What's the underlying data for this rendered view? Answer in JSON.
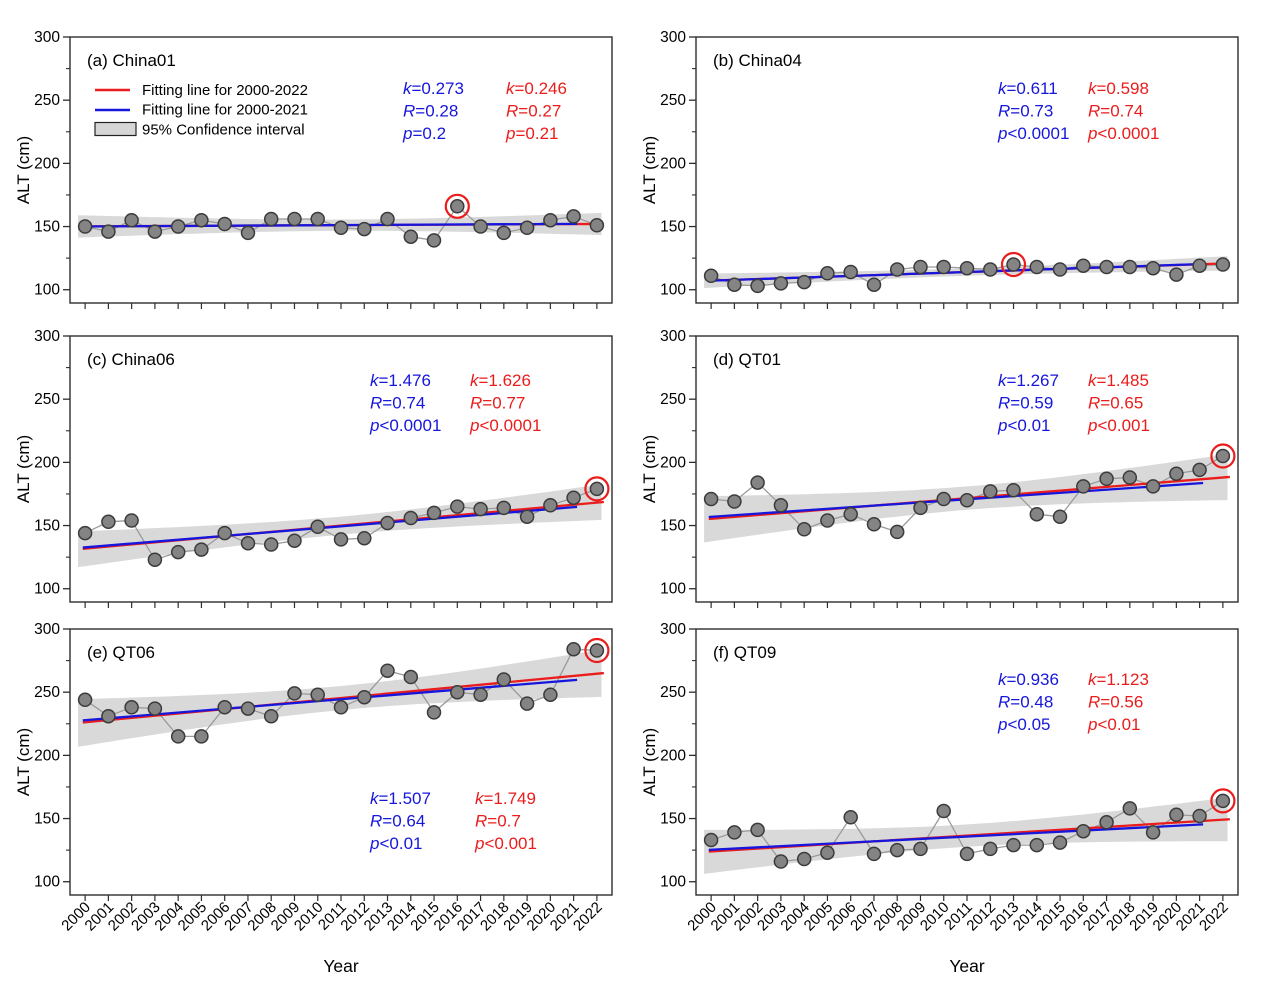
{
  "figure": {
    "description_label": "ALT time series with linear fits",
    "background": "#ffffff"
  },
  "colors": {
    "red_fit": "#ea1c1c",
    "blue_fit": "#1616dd",
    "band_gray": "#d6d6d6",
    "point_fill": "#848484",
    "point_stroke": "#3b3b3b",
    "connector_gray": "#9a9a9a",
    "axis": "#2d2d2d",
    "text": "#000000"
  },
  "legend": {
    "items": [
      {
        "label": "Fitting line for 2000-2022",
        "type": "line",
        "color": "#ea1c1c"
      },
      {
        "label": "Fitting line for 2000-2021",
        "type": "line",
        "color": "#1616dd"
      },
      {
        "label": "95% Confidence interval",
        "type": "box",
        "color": "#d6d6d6"
      }
    ]
  },
  "chart_data": {
    "type": "scatter",
    "xlabel": "Year",
    "ylabel": "ALT (cm)",
    "x": [
      2000,
      2001,
      2002,
      2003,
      2004,
      2005,
      2006,
      2007,
      2008,
      2009,
      2010,
      2011,
      2012,
      2013,
      2014,
      2015,
      2016,
      2017,
      2018,
      2019,
      2020,
      2021,
      2022
    ],
    "yticks": [
      300,
      250,
      200,
      150,
      100
    ],
    "ylim": [
      89.5,
      300
    ],
    "panels": [
      {
        "id": "a",
        "title": "(a) China01",
        "site": "China01",
        "show_legend": true,
        "y": [
          150,
          146,
          155,
          146,
          150,
          155,
          152,
          145,
          156,
          156,
          156,
          149,
          148,
          156,
          142,
          139,
          166,
          150,
          145,
          149,
          155,
          158,
          151
        ],
        "circled_year": 2016,
        "stats": {
          "blue": [
            "k=0.273",
            "R=0.28",
            "p=0.2"
          ],
          "red": [
            "k=0.246",
            "R=0.27",
            "p=0.21"
          ]
        }
      },
      {
        "id": "b",
        "title": "(b) China04",
        "site": "China04",
        "show_legend": false,
        "y": [
          111,
          104,
          103,
          105,
          106,
          113,
          114,
          104,
          116,
          118,
          118,
          117,
          116,
          120,
          118,
          116,
          119,
          118,
          118,
          117,
          112,
          119,
          120
        ],
        "circled_year": 2013,
        "stats": {
          "blue": [
            "k=0.611",
            "R=0.73",
            "p<0.0001"
          ],
          "red": [
            "k=0.598",
            "R=0.74",
            "p<0.0001"
          ]
        }
      },
      {
        "id": "c",
        "title": "(c) China06",
        "site": "China06",
        "show_legend": false,
        "y": [
          144,
          153,
          154,
          123,
          129,
          131,
          144,
          136,
          135,
          138,
          149,
          139,
          140,
          152,
          156,
          160,
          165,
          163,
          164,
          157,
          166,
          172,
          179
        ],
        "circled_year": 2022,
        "stats": {
          "blue": [
            "k=1.476",
            "R=0.74",
            "p<0.0001"
          ],
          "red": [
            "k=1.626",
            "R=0.77",
            "p<0.0001"
          ]
        }
      },
      {
        "id": "d",
        "title": "(d) QT01",
        "site": "QT01",
        "show_legend": false,
        "y": [
          171,
          169,
          184,
          166,
          147,
          154,
          159,
          151,
          145,
          164,
          171,
          170,
          177,
          178,
          159,
          157,
          181,
          187,
          188,
          181,
          191,
          194,
          205
        ],
        "circled_year": 2022,
        "stats": {
          "blue": [
            "k=1.267",
            "R=0.59",
            "p<0.01"
          ],
          "red": [
            "k=1.485",
            "R=0.65",
            "p<0.001"
          ]
        }
      },
      {
        "id": "e",
        "title": "(e) QT06",
        "site": "QT06",
        "show_legend": false,
        "y": [
          244,
          231,
          238,
          237,
          215,
          215,
          238,
          237,
          231,
          249,
          248,
          238,
          246,
          267,
          262,
          234,
          250,
          248,
          260,
          241,
          248,
          284,
          283
        ],
        "circled_year": 2022,
        "stats": {
          "blue": [
            "k=1.507",
            "R=0.64",
            "p<0.01"
          ],
          "red": [
            "k=1.749",
            "R=0.7",
            "p<0.001"
          ]
        }
      },
      {
        "id": "f",
        "title": "(f) QT09",
        "site": "QT09",
        "show_legend": false,
        "y": [
          133,
          139,
          141,
          116,
          118,
          123,
          151,
          122,
          125,
          126,
          156,
          122,
          126,
          129,
          129,
          131,
          140,
          147,
          158,
          139,
          153,
          152,
          164
        ],
        "circled_year": 2022,
        "stats": {
          "blue": [
            "k=0.936",
            "R=0.48",
            "p<0.05"
          ],
          "red": [
            "k=1.123",
            "R=0.56",
            "p<0.01"
          ]
        }
      }
    ]
  }
}
